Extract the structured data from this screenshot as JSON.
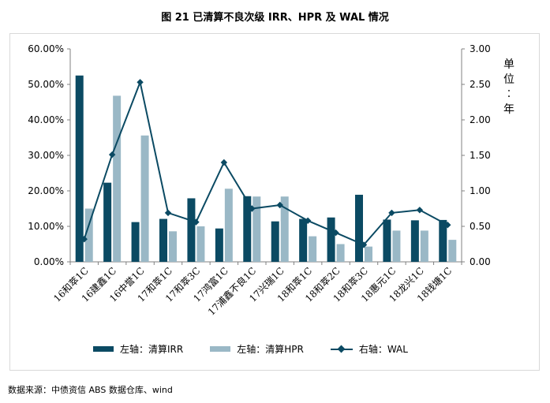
{
  "title": "图 21  已清算不良次级 IRR、HPR 及 WAL 情况",
  "source": "数据来源：中债资信 ABS 数据仓库、wind",
  "colors": {
    "irr": "#0b4a63",
    "hpr": "#9ab8c6",
    "wal": "#0b4a63",
    "axis": "#808080"
  },
  "chart_data": {
    "type": "bar",
    "categories": [
      "16和萃1C",
      "16建鑫1C",
      "16中誉1C",
      "17和萃1C",
      "17和萃3C",
      "17鸿富1C",
      "17浦鑫不良1C",
      "17兴瑞1C",
      "18和萃1C",
      "18和萃2C",
      "18和萃3C",
      "18惠元1C",
      "18龙兴1C",
      "18钱塘1C"
    ],
    "series": [
      {
        "name": "左轴：清算IRR",
        "type": "bar",
        "axis": "left",
        "values": [
          0.525,
          0.223,
          0.112,
          0.121,
          0.179,
          0.094,
          0.185,
          0.114,
          0.121,
          0.125,
          0.189,
          0.119,
          0.117,
          0.118
        ]
      },
      {
        "name": "左轴：清算HPR",
        "type": "bar",
        "axis": "left",
        "values": [
          0.15,
          0.468,
          0.356,
          0.086,
          0.1,
          0.206,
          0.184,
          0.184,
          0.072,
          0.05,
          0.043,
          0.088,
          0.088,
          0.062
        ]
      },
      {
        "name": "右轴：WAL",
        "type": "line",
        "axis": "right",
        "values": [
          0.32,
          1.51,
          2.53,
          0.69,
          0.56,
          1.4,
          0.75,
          0.8,
          0.58,
          0.41,
          0.24,
          0.69,
          0.73,
          0.52
        ]
      }
    ],
    "left_axis": {
      "ylim": [
        0,
        0.6
      ],
      "ticks": [
        "0.00%",
        "10.00%",
        "20.00%",
        "30.00%",
        "40.00%",
        "50.00%",
        "60.00%"
      ]
    },
    "right_axis": {
      "ylim": [
        0,
        3
      ],
      "ticks": [
        "0.00",
        "0.50",
        "1.00",
        "1.50",
        "2.00",
        "2.50",
        "3.00"
      ],
      "label": "单位：年"
    },
    "legend_position": "bottom"
  }
}
